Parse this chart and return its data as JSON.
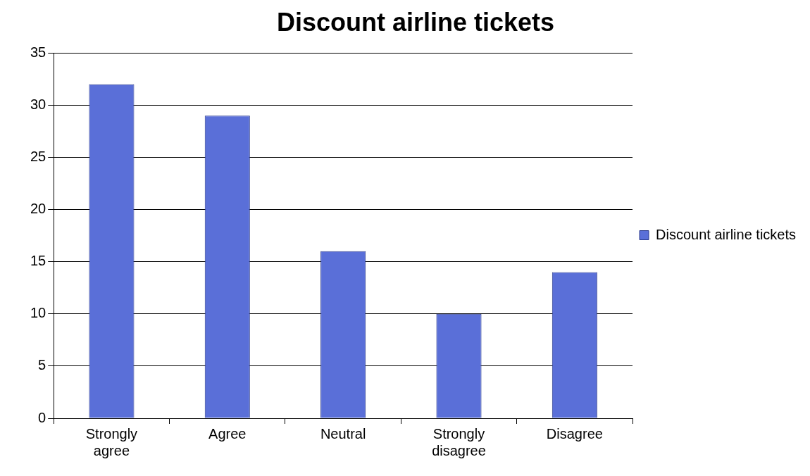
{
  "chart_data": {
    "type": "bar",
    "title": "Discount airline tickets",
    "categories": [
      "Strongly agree",
      "Agree",
      "Neutral",
      "Strongly disagree",
      "Disagree"
    ],
    "series": [
      {
        "name": "Discount airline tickets",
        "color": "#5a6fd8",
        "values": [
          32,
          29,
          16,
          10,
          14
        ]
      }
    ],
    "ylim": [
      0,
      35
    ],
    "yticks": [
      0,
      5,
      10,
      15,
      20,
      25,
      30,
      35
    ],
    "grid": "y",
    "legend": "right"
  }
}
